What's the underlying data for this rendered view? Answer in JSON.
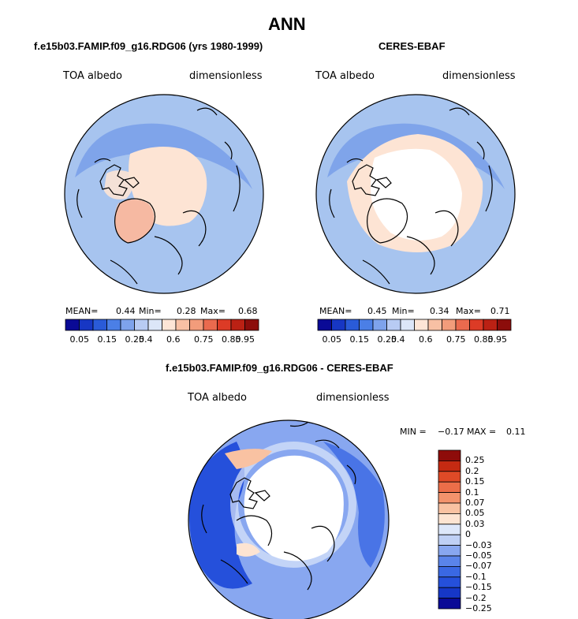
{
  "figure": {
    "main_title": "ANN",
    "diff_title": "f.e15b03.FAMIP.f09_g16.RDG06 - CERES-EBAF"
  },
  "colors": {
    "scale": [
      "#0a0a96",
      "#1737c4",
      "#2a5bd8",
      "#4b7fe6",
      "#7ea3ec",
      "#b8cbf3",
      "#dce6f8",
      "#fde5d6",
      "#f8c0a4",
      "#f29c7b",
      "#ea6a4e",
      "#dc3b26",
      "#bb2114",
      "#8c0d0b"
    ],
    "diff_scale": [
      "#0a0a96",
      "#1637c7",
      "#2550db",
      "#3a68e3",
      "#5a84ea",
      "#88a7f0",
      "#bfd0f5",
      "#dde7fa",
      "#fde4d2",
      "#f9c2a2",
      "#f3936c",
      "#ec6e49",
      "#df4a27",
      "#c52a12",
      "#8e0c0a"
    ],
    "ocean_base": "#a7c4ef",
    "ocean_dark": "#5f8be6",
    "land_warm": "#f6b9a2",
    "land_light": "#fde4d4",
    "white": "#ffffff"
  },
  "panels": [
    {
      "title": "f.e15b03.FAMIP.f09_g16.RDG06 (yrs 1980-1999)",
      "variable": "TOA albedo",
      "units": "dimensionless",
      "stats": {
        "mean_label": "MEAN=",
        "mean": "0.44",
        "min_label": "Min=",
        "min": "0.28",
        "max_label": "Max=",
        "max": "0.68"
      },
      "colorbar_ticks": [
        "0.05",
        "0.15",
        "0.25",
        "0.4",
        "0.6",
        "0.75",
        "0.85",
        "0.95"
      ]
    },
    {
      "title": "CERES-EBAF",
      "variable": "TOA albedo",
      "units": "dimensionless",
      "stats": {
        "mean_label": "MEAN=",
        "mean": "0.45",
        "min_label": "Min=",
        "min": "0.34",
        "max_label": "Max=",
        "max": "0.71"
      },
      "colorbar_ticks": [
        "0.05",
        "0.15",
        "0.25",
        "0.4",
        "0.6",
        "0.75",
        "0.85",
        "0.95"
      ]
    },
    {
      "title": "f.e15b03.FAMIP.f09_g16.RDG06 - CERES-EBAF",
      "variable": "TOA albedo",
      "units": "dimensionless",
      "stats": {
        "min_label": "MIN =",
        "min": "−0.17",
        "max_label": "MAX =",
        "max": "0.11"
      },
      "colorbar_ticks": [
        "0.25",
        "0.2",
        "0.15",
        "0.1",
        "0.07",
        "0.05",
        "0.03",
        "0",
        "−0.03",
        "−0.05",
        "−0.07",
        "−0.1",
        "−0.15",
        "−0.2",
        "−0.25"
      ]
    }
  ],
  "chart_data": [
    {
      "type": "heatmap",
      "title": "f.e15b03.FAMIP.f09_g16.RDG06 (yrs 1980-1999)",
      "projection": "north-polar stereographic",
      "variable": "TOA albedo",
      "units": "dimensionless",
      "mean": 0.44,
      "min": 0.28,
      "max": 0.68,
      "color_levels": [
        0.05,
        0.1,
        0.15,
        0.2,
        0.25,
        0.3,
        0.4,
        0.5,
        0.6,
        0.7,
        0.75,
        0.8,
        0.85,
        0.9,
        0.95
      ],
      "colorbar_labels": [
        0.05,
        0.15,
        0.25,
        0.4,
        0.6,
        0.75,
        0.85,
        0.95
      ]
    },
    {
      "type": "heatmap",
      "title": "CERES-EBAF",
      "projection": "north-polar stereographic",
      "variable": "TOA albedo",
      "units": "dimensionless",
      "mean": 0.45,
      "min": 0.34,
      "max": 0.71,
      "color_levels": [
        0.05,
        0.1,
        0.15,
        0.2,
        0.25,
        0.3,
        0.4,
        0.5,
        0.6,
        0.7,
        0.75,
        0.8,
        0.85,
        0.9,
        0.95
      ],
      "colorbar_labels": [
        0.05,
        0.15,
        0.25,
        0.4,
        0.6,
        0.75,
        0.85,
        0.95
      ]
    },
    {
      "type": "heatmap",
      "title": "f.e15b03.FAMIP.f09_g16.RDG06 - CERES-EBAF",
      "projection": "north-polar stereographic",
      "variable": "TOA albedo",
      "units": "dimensionless",
      "min": -0.17,
      "max": 0.11,
      "color_levels": [
        -0.25,
        -0.2,
        -0.15,
        -0.1,
        -0.07,
        -0.05,
        -0.03,
        0,
        0.03,
        0.05,
        0.07,
        0.1,
        0.15,
        0.2,
        0.25
      ]
    }
  ]
}
